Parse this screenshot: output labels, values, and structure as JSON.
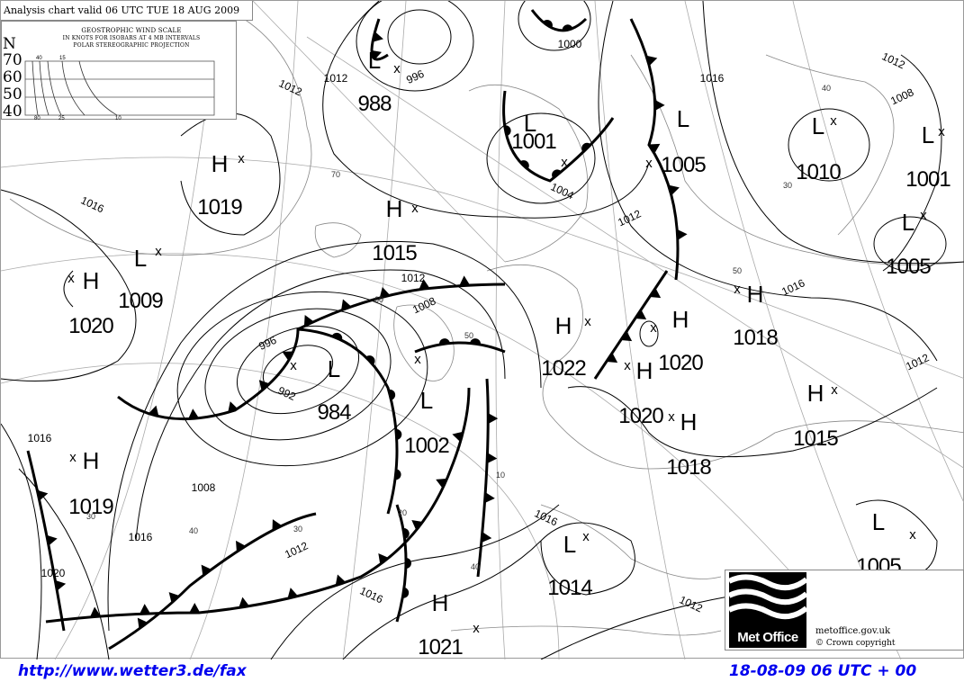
{
  "chart_header": {
    "title": "Analysis chart valid 06 UTC TUE 18 AUG 2009"
  },
  "wind_scale": {
    "title": "GEOSTROPHIC WIND SCALE",
    "subtitle": "IN KNOTS FOR ISOBARS AT  4 MB INTERVALS",
    "projection": "POLAR STEREOGRAPHIC PROJECTION",
    "north": "N",
    "latitudes": [
      "70",
      "60",
      "50",
      "40"
    ],
    "top_labels": [
      "40",
      "15"
    ],
    "bottom_labels": [
      "80",
      "25",
      "10"
    ]
  },
  "pressure_centres": [
    {
      "type": "L",
      "value": "988"
    },
    {
      "type": "L",
      "value": "1001"
    },
    {
      "type": "L",
      "value": "1005"
    },
    {
      "type": "L",
      "value": "1010"
    },
    {
      "type": "L",
      "value": "1001"
    },
    {
      "type": "L",
      "value": "1005"
    },
    {
      "type": "H",
      "value": "1019"
    },
    {
      "type": "H",
      "value": "1015"
    },
    {
      "type": "L",
      "value": "1009"
    },
    {
      "type": "H",
      "value": "1020"
    },
    {
      "type": "L",
      "value": "984"
    },
    {
      "type": "L",
      "value": "1002"
    },
    {
      "type": "H",
      "value": "1022"
    },
    {
      "type": "H",
      "value": "1020"
    },
    {
      "type": "H",
      "value": "1018"
    },
    {
      "type": "H",
      "value": "1020"
    },
    {
      "type": "H",
      "value": "1018"
    },
    {
      "type": "H",
      "value": "1015"
    },
    {
      "type": "H",
      "value": "1019"
    },
    {
      "type": "L",
      "value": "1014"
    },
    {
      "type": "L",
      "value": "1005"
    },
    {
      "type": "H",
      "value": "1021"
    }
  ],
  "isobar_labels": [
    "996",
    "1000",
    "1004",
    "1008",
    "1012",
    "1016",
    "1012",
    "1016",
    "1016",
    "1012",
    "1008",
    "1012",
    "1016",
    "1020",
    "1016",
    "1012",
    "1016",
    "1012",
    "1008",
    "1012",
    "992",
    "996",
    "1016",
    "1012"
  ],
  "latitude_labels": [
    "70",
    "60",
    "50",
    "40",
    "30",
    "20",
    "10",
    "40",
    "30",
    "50",
    "40",
    "30"
  ],
  "logo": {
    "brand": "Met Office",
    "site": "metoffice.gov.uk",
    "copyright": "©  Crown copyright"
  },
  "footer": {
    "url": "http://www.wetter3.de/fax",
    "timestamp": "18-08-09 06 UTC + 00"
  },
  "colors": {
    "lines": "#000000",
    "grid": "#999999",
    "coast": "#888888",
    "footer_text": "#0000ee"
  }
}
